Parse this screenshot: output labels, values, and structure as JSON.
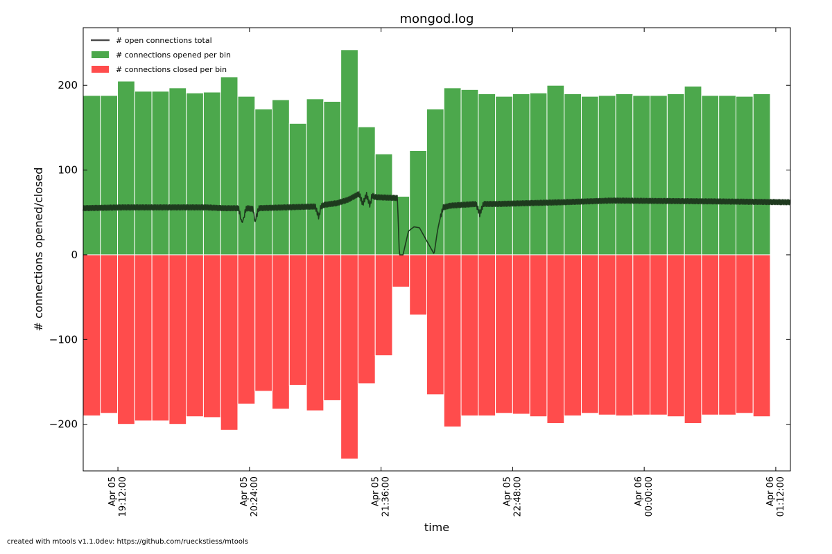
{
  "chart_data": {
    "type": "bar",
    "title": "mongod.log",
    "xlabel": "time",
    "ylabel": "# connections opened/closed",
    "ylim": [
      -255,
      268
    ],
    "x_time_range": [
      "Apr 05 18:53:00",
      "Apr 06 01:20:00"
    ],
    "bin_start": "Apr 05 18:53:00",
    "bin_minutes": 9.4,
    "series": [
      {
        "name": "# connections opened per bin",
        "color": "#4ca84c",
        "values": [
          188,
          188,
          205,
          193,
          193,
          197,
          191,
          192,
          210,
          187,
          172,
          183,
          155,
          184,
          181,
          242,
          151,
          119,
          69,
          123,
          172,
          197,
          195,
          190,
          187,
          190,
          191,
          200,
          190,
          187,
          188,
          190,
          188,
          188,
          190,
          199,
          188,
          188,
          187,
          190
        ]
      },
      {
        "name": "# connections closed per bin",
        "color": "#ff4c4c",
        "values": [
          -190,
          -187,
          -200,
          -196,
          -196,
          -200,
          -191,
          -192,
          -207,
          -176,
          -161,
          -182,
          -154,
          -184,
          -172,
          -241,
          -152,
          -119,
          -38,
          -71,
          -165,
          -203,
          -190,
          -190,
          -187,
          -188,
          -191,
          -199,
          -190,
          -187,
          -189,
          -190,
          -189,
          -189,
          -191,
          -199,
          -189,
          -189,
          -187,
          -191
        ]
      },
      {
        "name": "# open connections total",
        "color": "#1e3a1e",
        "x": [
          "Apr 05 18:53:00",
          "Apr 05 19:15:00",
          "Apr 05 20:00:00",
          "Apr 05 20:10:00",
          "Apr 05 20:18:00",
          "Apr 05 20:20:00",
          "Apr 05 20:22:00",
          "Apr 05 20:23:00",
          "Apr 05 20:26:00",
          "Apr 05 20:27:00",
          "Apr 05 20:29:00",
          "Apr 05 20:44:00",
          "Apr 05 21:00:00",
          "Apr 05 21:02:00",
          "Apr 05 21:03:00",
          "Apr 05 21:05:00",
          "Apr 05 21:12:00",
          "Apr 05 21:18:00",
          "Apr 05 21:24:00",
          "Apr 05 21:26:00",
          "Apr 05 21:28:00",
          "Apr 05 21:30:00",
          "Apr 05 21:31:00",
          "Apr 05 21:33:00",
          "Apr 05 21:45:00",
          "Apr 05 21:46:00",
          "Apr 05 21:47:00",
          "Apr 05 21:48:00",
          "Apr 05 21:51:00",
          "Apr 05 21:54:00",
          "Apr 05 21:57:00",
          "Apr 05 22:05:00",
          "Apr 05 22:07:00",
          "Apr 05 22:08:00",
          "Apr 05 22:10:00",
          "Apr 05 22:14:00",
          "Apr 05 22:28:00",
          "Apr 05 22:30:00",
          "Apr 05 22:32:00",
          "Apr 05 22:40:00",
          "Apr 05 23:15:00",
          "Apr 05 23:42:00",
          "Apr 06 00:40:00",
          "Apr 06 01:20:00"
        ],
        "values": [
          55,
          56,
          56,
          55,
          55,
          37,
          54,
          55,
          54,
          38,
          55,
          56,
          57,
          44,
          57,
          59,
          61,
          65,
          72,
          60,
          71,
          58,
          70,
          68,
          67,
          0,
          0,
          0,
          28,
          33,
          32,
          1,
          30,
          40,
          56,
          58,
          60,
          48,
          60,
          60,
          62,
          64,
          63,
          62
        ]
      }
    ],
    "yticks": [
      "−200",
      "−100",
      "0",
      "100",
      "200"
    ],
    "ytick_values": [
      -200,
      -100,
      0,
      100,
      200
    ],
    "xticks": [
      {
        "date": "Apr 05",
        "time": "19:12:00"
      },
      {
        "date": "Apr 05",
        "time": "20:24:00"
      },
      {
        "date": "Apr 05",
        "time": "21:36:00"
      },
      {
        "date": "Apr 05",
        "time": "22:48:00"
      },
      {
        "date": "Apr 06",
        "time": "00:00:00"
      },
      {
        "date": "Apr 06",
        "time": "01:12:00"
      }
    ],
    "xtick_values": [
      "Apr 05 19:12:00",
      "Apr 05 20:24:00",
      "Apr 05 21:36:00",
      "Apr 05 22:48:00",
      "Apr 06 00:00:00",
      "Apr 06 01:12:00"
    ],
    "legend": [
      "# open connections total",
      "# connections opened per bin",
      "# connections closed per bin"
    ],
    "legend_position": "top-left",
    "grid": false
  },
  "footer": "created with mtools v1.1.0dev: https://github.com/rueckstiess/mtools"
}
